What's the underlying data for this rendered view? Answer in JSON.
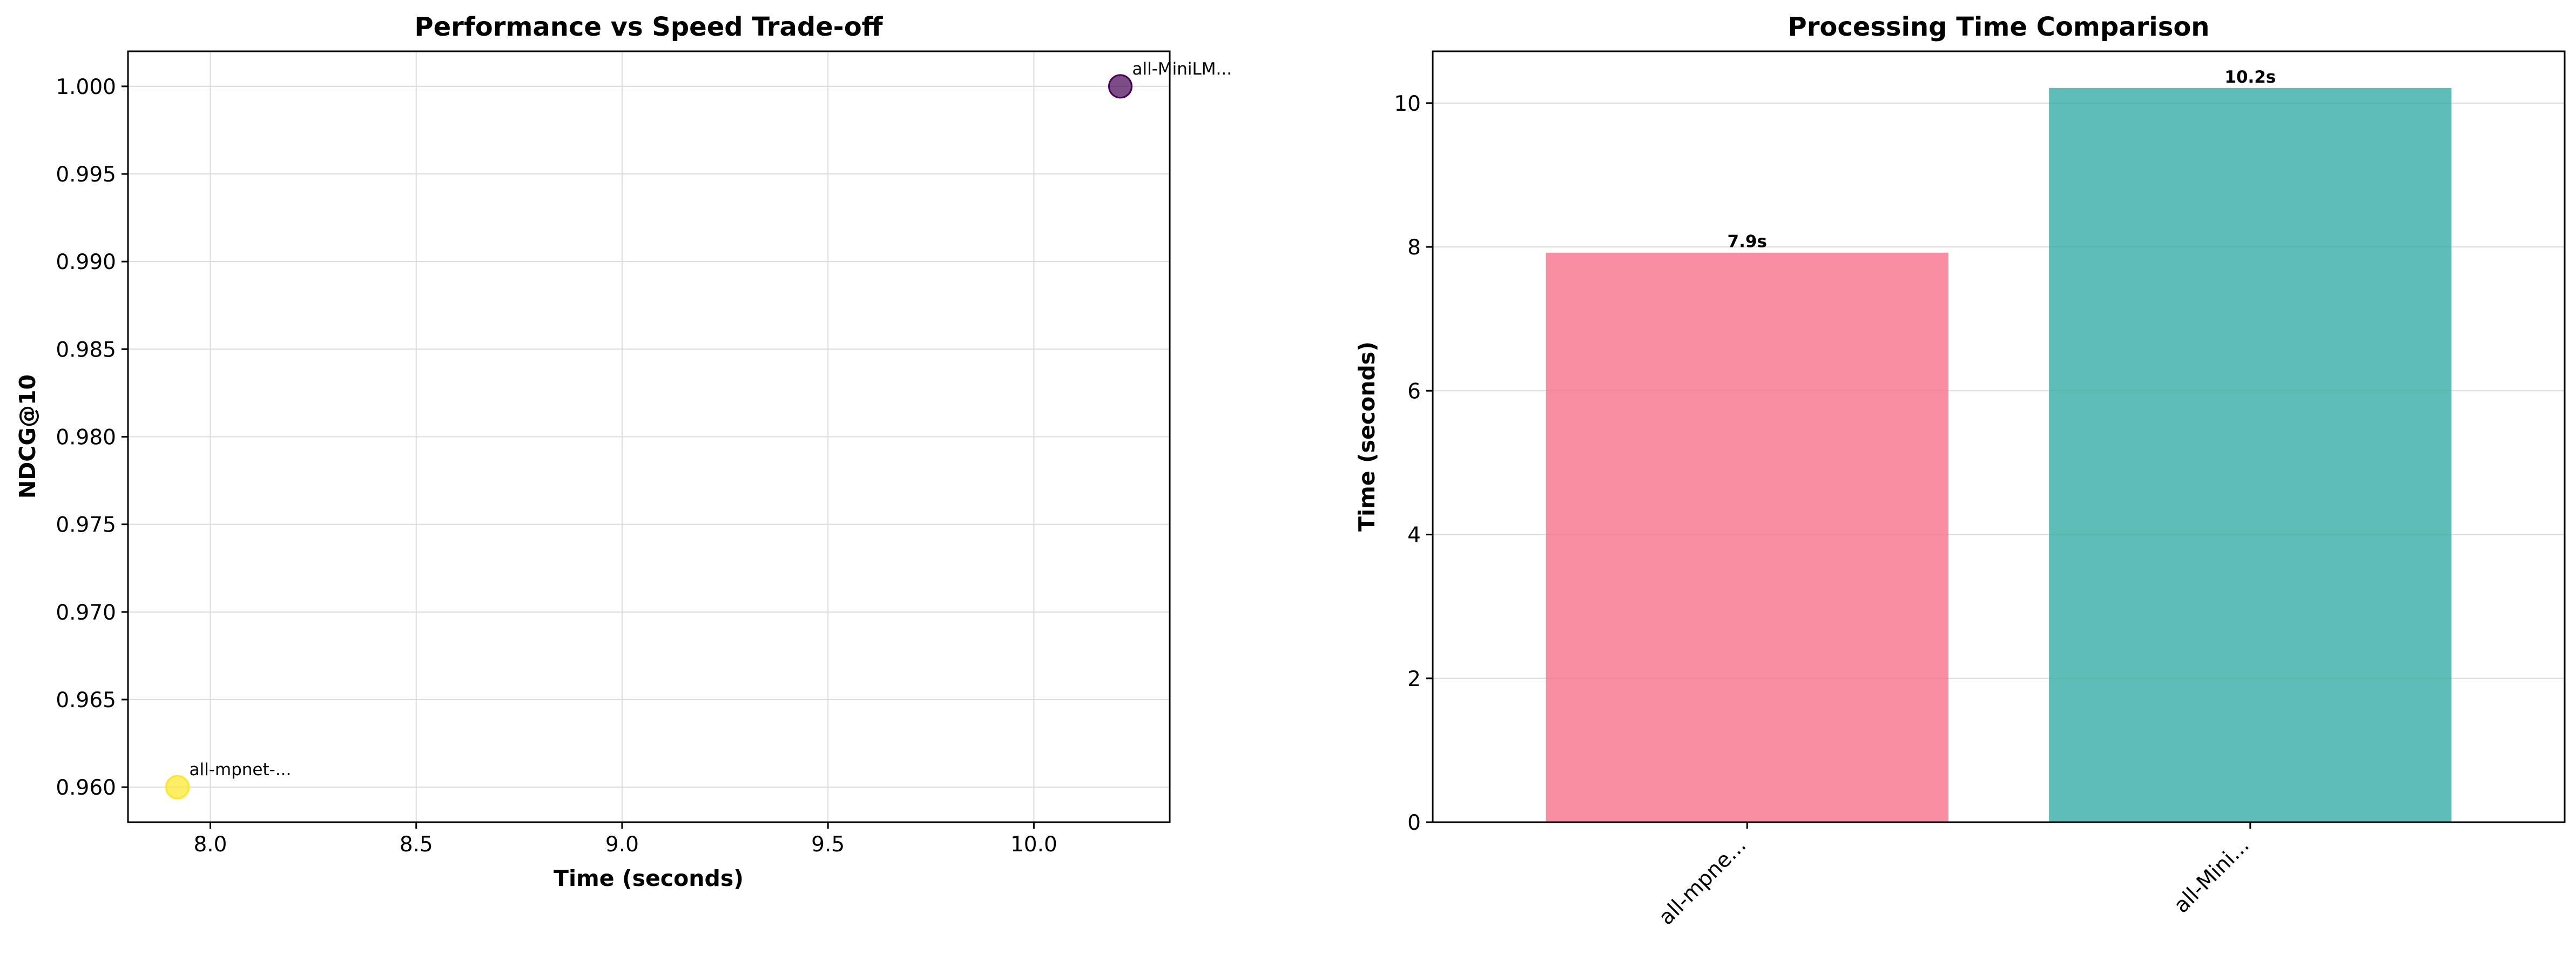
{
  "chart_data": [
    {
      "type": "scatter",
      "title": "Performance vs Speed Trade-off",
      "xlabel": "Time (seconds)",
      "ylabel": "NDCG@10",
      "xlim": [
        7.8,
        10.33
      ],
      "ylim": [
        0.958,
        1.002
      ],
      "xticks": [
        8.0,
        8.5,
        9.0,
        9.5,
        10.0
      ],
      "yticks": [
        0.96,
        0.965,
        0.97,
        0.975,
        0.98,
        0.985,
        0.99,
        0.995,
        1.0
      ],
      "grid": true,
      "points": [
        {
          "x": 7.92,
          "y": 0.96,
          "label": "all-mpnet-...",
          "color": "#fde725"
        },
        {
          "x": 10.21,
          "y": 1.0,
          "label": "all-MiniLM...",
          "color": "#440154"
        }
      ]
    },
    {
      "type": "bar",
      "title": "Processing Time Comparison",
      "xlabel": "",
      "ylabel": "Time (seconds)",
      "ylim": [
        0,
        10.72
      ],
      "yticks": [
        0,
        2,
        4,
        6,
        8,
        10
      ],
      "grid": true,
      "categories": [
        "all-mpne...",
        "all-Mini..."
      ],
      "values": [
        7.92,
        10.21
      ],
      "value_labels": [
        "7.9s",
        "10.2s"
      ],
      "colors": [
        "#f77189",
        "#36ada4"
      ]
    }
  ]
}
